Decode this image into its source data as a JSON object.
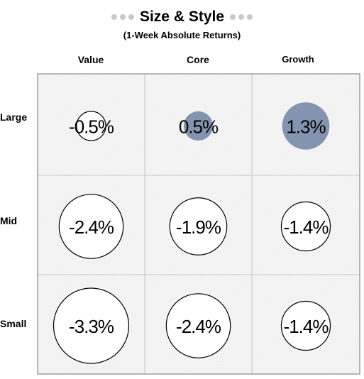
{
  "header": {
    "title": "Size & Style",
    "subtitle": "(1-Week Absolute Returns)"
  },
  "chart_data": {
    "type": "bubble-grid",
    "title": "Size & Style",
    "subtitle": "(1-Week Absolute Returns)",
    "columns": [
      "Value",
      "Core",
      "Growth"
    ],
    "rows": [
      "Large",
      "Mid",
      "Small"
    ],
    "cells": [
      {
        "row": "Large",
        "col": "Value",
        "value": -0.5,
        "label": "-0.5%"
      },
      {
        "row": "Large",
        "col": "Core",
        "value": 0.5,
        "label": "0.5%"
      },
      {
        "row": "Large",
        "col": "Growth",
        "value": 1.3,
        "label": "1.3%"
      },
      {
        "row": "Mid",
        "col": "Value",
        "value": -2.4,
        "label": "-2.4%"
      },
      {
        "row": "Mid",
        "col": "Core",
        "value": -1.9,
        "label": "-1.9%"
      },
      {
        "row": "Mid",
        "col": "Growth",
        "value": -1.4,
        "label": "-1.4%"
      },
      {
        "row": "Small",
        "col": "Value",
        "value": -3.3,
        "label": "-3.3%"
      },
      {
        "row": "Small",
        "col": "Core",
        "value": -2.4,
        "label": "-2.4%"
      },
      {
        "row": "Small",
        "col": "Growth",
        "value": -1.4,
        "label": "-1.4%"
      }
    ],
    "colors": {
      "positive_fill": "#8494b0",
      "negative_fill": "#ffffff",
      "negative_stroke": "#000000",
      "cell_background": "#f6f6f6",
      "cell_hatch": "#e6e6e6",
      "grid_line": "#c4c4c4",
      "title_dots": "#c8c8c8"
    }
  }
}
